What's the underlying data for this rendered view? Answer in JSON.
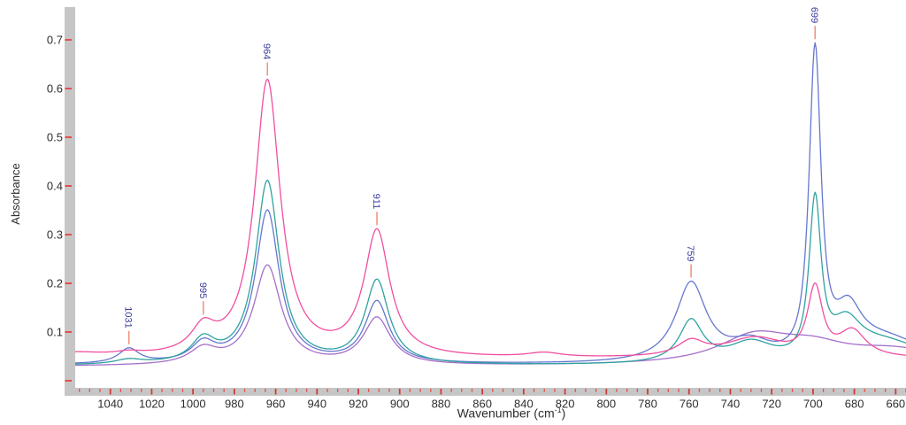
{
  "chart_data": {
    "type": "line",
    "title": "",
    "ylabel": "Absorbance",
    "xlabel_pre": "Wavenumber (cm",
    "xlabel_sup": "-1",
    "xlabel_post": ")",
    "x_axis": {
      "unit": "cm-1",
      "direction": "descending",
      "value_at_left": 1057,
      "value_at_right": 655,
      "major_tick_step": 20,
      "minor_tick_step": 5,
      "major_ticks": [
        1040,
        1020,
        1000,
        980,
        960,
        940,
        920,
        900,
        880,
        860,
        840,
        820,
        800,
        780,
        760,
        740,
        720,
        700,
        680,
        660
      ]
    },
    "y_axis": {
      "ticks": [
        0,
        0.1,
        0.2,
        0.3,
        0.4,
        0.5,
        0.6,
        0.7
      ],
      "labeled_ticks": [
        "0.1",
        "0.2",
        "0.3",
        "0.4",
        "0.5",
        "0.6",
        "0.7"
      ],
      "min_labeled": 0.1,
      "grid": false
    },
    "legend": "none",
    "peak_labels": [
      {
        "text": "1031",
        "wavenumber": 1031
      },
      {
        "text": "995",
        "wavenumber": 995
      },
      {
        "text": "964",
        "wavenumber": 964
      },
      {
        "text": "911",
        "wavenumber": 911
      },
      {
        "text": "759",
        "wavenumber": 759
      },
      {
        "text": "699",
        "wavenumber": 699
      }
    ],
    "peak_absorbance_by_series": {
      "pink": {
        "1031": 0.05,
        "995": 0.13,
        "964": 0.61,
        "911": 0.3,
        "759": 0.08,
        "699": 0.2
      },
      "teal": {
        "1031": 0.05,
        "995": 0.09,
        "964": 0.41,
        "911": 0.21,
        "759": 0.13,
        "699": 0.39
      },
      "blue": {
        "1031": 0.065,
        "995": 0.085,
        "964": 0.35,
        "911": 0.17,
        "759": 0.21,
        "699": 0.68
      },
      "purple": {
        "1031": 0.04,
        "995": 0.07,
        "964": 0.23,
        "911": 0.13,
        "759": 0.05,
        "699": 0.09
      }
    },
    "series": [
      {
        "name": "purple",
        "color": "#a56fc9",
        "baseline": 0.029,
        "peaks": [
          {
            "c": 995,
            "h": 0.031,
            "g": 8
          },
          {
            "c": 964,
            "h": 0.204,
            "g": 8
          },
          {
            "c": 911,
            "h": 0.096,
            "g": 8
          },
          {
            "c": 728,
            "h": 0.057,
            "g": 22
          },
          {
            "c": 700,
            "h": 0.03,
            "g": 20
          },
          {
            "c": 660,
            "h": 0.03,
            "g": 30
          }
        ]
      },
      {
        "name": "blue",
        "color": "#6577cf",
        "baseline": 0.032,
        "peaks": [
          {
            "c": 1031,
            "h": 0.03,
            "g": 6
          },
          {
            "c": 995,
            "h": 0.038,
            "g": 7
          },
          {
            "c": 964,
            "h": 0.314,
            "g": 7
          },
          {
            "c": 911,
            "h": 0.126,
            "g": 7
          },
          {
            "c": 759,
            "h": 0.162,
            "g": 9
          },
          {
            "c": 730,
            "h": 0.035,
            "g": 12
          },
          {
            "c": 699,
            "h": 0.618,
            "g": 4,
            "p": 1.3
          },
          {
            "c": 683,
            "h": 0.09,
            "g": 8
          },
          {
            "c": 665,
            "h": 0.05,
            "g": 25
          }
        ]
      },
      {
        "name": "teal",
        "color": "#2fa2a0",
        "baseline": 0.03,
        "peaks": [
          {
            "c": 1031,
            "h": 0.009,
            "g": 8
          },
          {
            "c": 995,
            "h": 0.046,
            "g": 7
          },
          {
            "c": 964,
            "h": 0.376,
            "g": 7
          },
          {
            "c": 911,
            "h": 0.171,
            "g": 7
          },
          {
            "c": 759,
            "h": 0.086,
            "g": 7
          },
          {
            "c": 730,
            "h": 0.04,
            "g": 13
          },
          {
            "c": 699,
            "h": 0.315,
            "g": 4,
            "p": 1.3
          },
          {
            "c": 684,
            "h": 0.07,
            "g": 9
          },
          {
            "c": 665,
            "h": 0.045,
            "g": 25
          }
        ]
      },
      {
        "name": "pink",
        "color": "#ef4fa0",
        "baseline": 0.044,
        "peaks": [
          {
            "c": 1058,
            "h": 0.01,
            "g": 18
          },
          {
            "c": 1031,
            "h": 0.006,
            "g": 8
          },
          {
            "c": 995,
            "h": 0.05,
            "g": 7
          },
          {
            "c": 964,
            "h": 0.567,
            "g": 7.5
          },
          {
            "c": 911,
            "h": 0.256,
            "g": 7.5
          },
          {
            "c": 830,
            "h": 0.009,
            "g": 10
          },
          {
            "c": 759,
            "h": 0.03,
            "g": 8
          },
          {
            "c": 728,
            "h": 0.041,
            "g": 18
          },
          {
            "c": 699,
            "h": 0.135,
            "g": 5,
            "p": 1.3
          },
          {
            "c": 681,
            "h": 0.054,
            "g": 8
          }
        ]
      }
    ],
    "colors": {
      "background": "#ffffff",
      "axis_bar": "#c6c6c6",
      "tick_minor": "#e34f4f",
      "tick_major": "#d23a3a",
      "tick_label": "#2e2e2e",
      "axis_title": "#2e2e2e",
      "peak_label": "#3c3c9e",
      "peak_leader": "#f0907a"
    }
  }
}
